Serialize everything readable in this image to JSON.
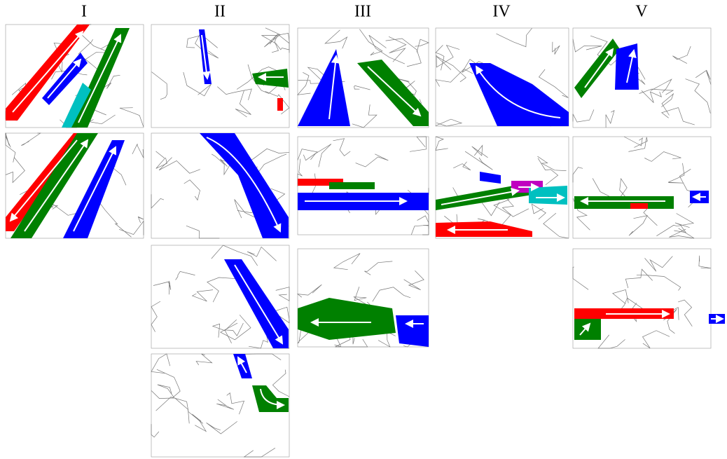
{
  "columns": [
    {
      "label": "I"
    },
    {
      "label": "II"
    },
    {
      "label": "III"
    },
    {
      "label": "IV"
    },
    {
      "label": "V"
    }
  ]
}
